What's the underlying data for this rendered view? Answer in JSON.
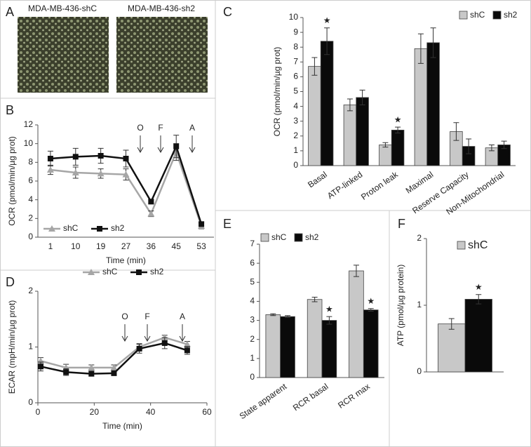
{
  "panel_a": {
    "panel_label": "A",
    "captions": [
      "MDA-MB-436-shC",
      "MDA-MB-436-sh2"
    ]
  },
  "chart_data": [
    {
      "type": "line",
      "panel_label": "B",
      "ylabel": "OCR (pmol/min/µg prot)",
      "xlabel": "Time (min)",
      "categories": [
        "1",
        "10",
        "19",
        "27",
        "36",
        "45",
        "53"
      ],
      "ylim": [
        0,
        12
      ],
      "yticks": [
        0,
        2,
        4,
        6,
        8,
        10,
        12
      ],
      "annotations": [
        "O",
        "F",
        "A"
      ],
      "series": [
        {
          "name": "shC",
          "color": "#a6a6a6",
          "marker": "triangle",
          "values": [
            7.2,
            6.9,
            6.8,
            6.7,
            2.5,
            9.1,
            1.2
          ],
          "errors": [
            0.5,
            0.6,
            0.5,
            0.6,
            0.3,
            0.9,
            0.3
          ]
        },
        {
          "name": "sh2",
          "color": "#111111",
          "marker": "square",
          "values": [
            8.4,
            8.6,
            8.7,
            8.4,
            3.8,
            9.7,
            1.4
          ],
          "errors": [
            0.8,
            0.9,
            0.8,
            0.9,
            0.2,
            1.2,
            0.2
          ]
        }
      ]
    },
    {
      "type": "bar",
      "panel_label": "C",
      "ylabel": "OCR (pmol/min/µg prot)",
      "categories": [
        "Basal",
        "ATP-linked",
        "Proton leak",
        "Maximal",
        "Reserve Capacity",
        "Non-Mitochondrial"
      ],
      "ylim": [
        0,
        10
      ],
      "yticks": [
        0,
        1,
        2,
        3,
        4,
        5,
        6,
        7,
        8,
        9,
        10
      ],
      "series": [
        {
          "name": "shC",
          "color": "#c8c8c8",
          "values": [
            6.7,
            4.1,
            1.4,
            7.9,
            2.3,
            1.2
          ],
          "errors": [
            0.6,
            0.4,
            0.15,
            1.0,
            0.6,
            0.2
          ]
        },
        {
          "name": "sh2",
          "color": "#0a0a0a",
          "values": [
            8.4,
            4.6,
            2.4,
            8.3,
            1.3,
            1.4
          ],
          "errors": [
            0.9,
            0.5,
            0.2,
            1.0,
            0.5,
            0.25
          ],
          "significance": [
            "★",
            null,
            "★",
            null,
            null,
            null
          ]
        }
      ]
    },
    {
      "type": "line",
      "panel_label": "D",
      "ylabel": "ECAR (mpH/min/µg prot)",
      "xlabel": "Time (min)",
      "x": [
        1,
        10,
        19,
        27,
        36,
        45,
        53
      ],
      "xlim": [
        0,
        60
      ],
      "xticks": [
        0,
        20,
        40,
        60
      ],
      "ylim": [
        0,
        2
      ],
      "yticks": [
        0,
        1,
        2
      ],
      "annotations": [
        "O",
        "F",
        "A"
      ],
      "series": [
        {
          "name": "shC",
          "color": "#a6a6a6",
          "marker": "triangle",
          "values": [
            0.75,
            0.63,
            0.63,
            0.63,
            1.0,
            1.17,
            1.05
          ],
          "errors": [
            0.06,
            0.06,
            0.05,
            0.05,
            0.06,
            0.04,
            0.05
          ]
        },
        {
          "name": "sh2",
          "color": "#111111",
          "marker": "square",
          "values": [
            0.65,
            0.55,
            0.52,
            0.53,
            0.97,
            1.07,
            0.94
          ],
          "errors": [
            0.08,
            0.06,
            0.04,
            0.04,
            0.08,
            0.1,
            0.07
          ]
        }
      ]
    },
    {
      "type": "bar",
      "panel_label": "E",
      "categories": [
        "State apparent",
        "RCR basal",
        "RCR max"
      ],
      "ylim": [
        0,
        7
      ],
      "yticks": [
        0,
        1,
        2,
        3,
        4,
        5,
        6,
        7
      ],
      "series": [
        {
          "name": "shC",
          "color": "#c8c8c8",
          "values": [
            3.3,
            4.1,
            5.6
          ],
          "errors": [
            0.05,
            0.12,
            0.3
          ]
        },
        {
          "name": "sh2",
          "color": "#0a0a0a",
          "values": [
            3.2,
            3.0,
            3.55
          ],
          "errors": [
            0.05,
            0.2,
            0.07
          ],
          "significance": [
            null,
            "★",
            "★"
          ]
        }
      ]
    },
    {
      "type": "bar",
      "panel_label": "F",
      "ylabel": "ATP (pmol/µg protein)",
      "categories": [
        null
      ],
      "ylim": [
        0,
        2
      ],
      "yticks": [
        0,
        1,
        2
      ],
      "series": [
        {
          "name": "shC",
          "color": "#c8c8c8",
          "values": [
            0.72
          ],
          "errors": [
            0.08
          ]
        },
        {
          "color": "#0a0a0a",
          "values": [
            1.09
          ],
          "errors": [
            0.07
          ],
          "significance": [
            "★"
          ]
        }
      ]
    }
  ]
}
